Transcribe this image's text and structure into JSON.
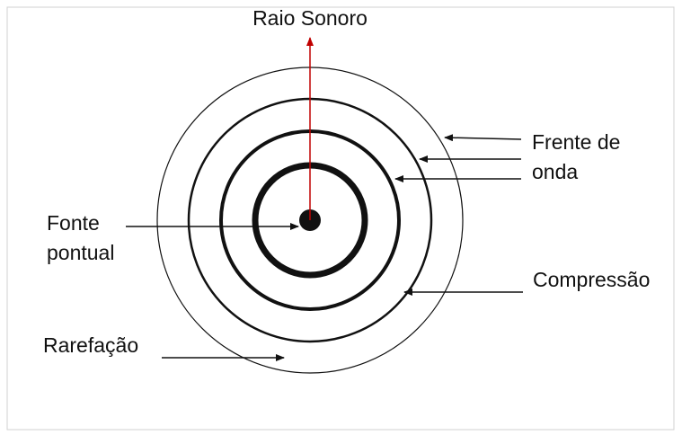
{
  "ray_label": "Raio Sonoro",
  "labels": {
    "wavefront": [
      "Frente de",
      "onda"
    ],
    "source": [
      "Fonte",
      "pontual"
    ],
    "compression": "Compressão",
    "rarefaction": "Rarefação"
  }
}
